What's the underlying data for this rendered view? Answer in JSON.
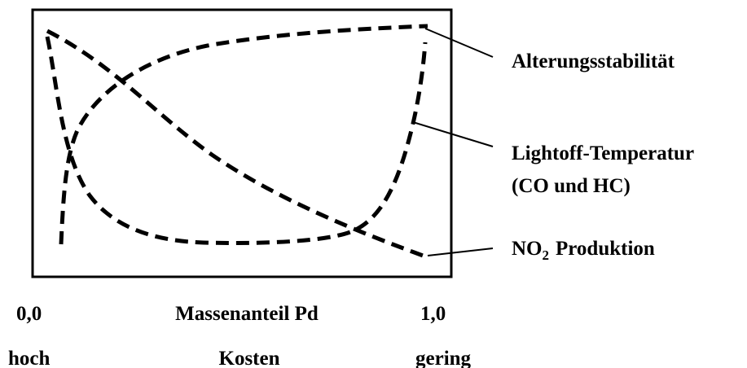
{
  "labels": {
    "aging": "Alterungsstabilität",
    "lightoff": "Lightoff-Temperatur",
    "lightoff_sub": "(CO und HC)",
    "no2": {
      "main": "NO",
      "sub": "2",
      "rest": "Produktion"
    }
  },
  "axis": {
    "left": "0,0",
    "title": "Massenanteil Pd",
    "right": "1,0"
  },
  "cost": {
    "left": "hoch",
    "title": "Kosten",
    "right": "gering"
  }
}
